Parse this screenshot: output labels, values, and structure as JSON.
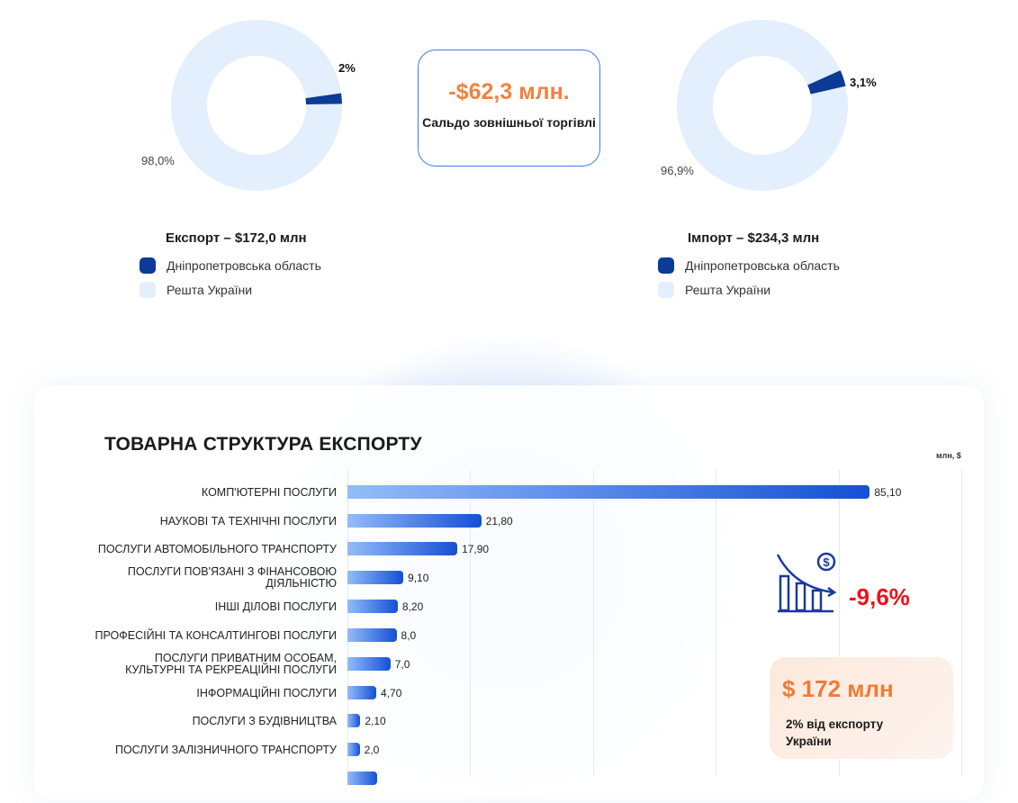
{
  "export_donut": {
    "highlight_label": "2%",
    "rest_label": "98,0%",
    "highlight_value": 2.0,
    "rest_value": 98.0,
    "title": "Експорт – $172,0 млн"
  },
  "import_donut": {
    "highlight_label": "3,1%",
    "rest_label": "96,9%",
    "highlight_value": 3.1,
    "rest_value": 96.9,
    "title": "Імпорт – $234,3 млн"
  },
  "legend": {
    "region": "Дніпропетровська область",
    "rest": "Решта України"
  },
  "colors": {
    "region": "#0b3a97",
    "rest": "#e3effc",
    "accent": "#f0823f",
    "negative": "#e8141a"
  },
  "saldo": {
    "value": "-$62,3 млн.",
    "label": "Сальдо зовнішньої торгівлі"
  },
  "chart_data": {
    "type": "bar",
    "title": "ТОВАРНА СТРУКТУРА ЕКСПОРТУ",
    "unit": "млн, $",
    "xlim": [
      0,
      100
    ],
    "grid": true,
    "categories": [
      "Комп'ютерні послуги",
      "Наукові та технічні послуги",
      "Послуги автомобільного транспорту",
      "Послуги пов'язані з фінансовою діяльністю",
      "Інші ділові послуги",
      "Професійні та консалтингові послуги",
      "Послуги приватним особам, культурні та рекреаційні послуги",
      "Інформаційні послуги",
      "Послуги з будівництва",
      "Послуги залізничного транспорту"
    ],
    "values": [
      85.1,
      21.8,
      17.9,
      9.1,
      8.2,
      8.0,
      7.0,
      4.7,
      2.1,
      2.0
    ],
    "value_labels": [
      "85,10",
      "21,80",
      "17,90",
      "9,10",
      "8,20",
      "8,0",
      "7,0",
      "4,70",
      "2,10",
      "2,0"
    ],
    "cutoff_bar_value": 4.9
  },
  "change": {
    "value": "-9,6%",
    "icon": "chart-decline-dollar-icon"
  },
  "summary": {
    "value": "$ 172 млн",
    "label": "2% від експорту України"
  }
}
